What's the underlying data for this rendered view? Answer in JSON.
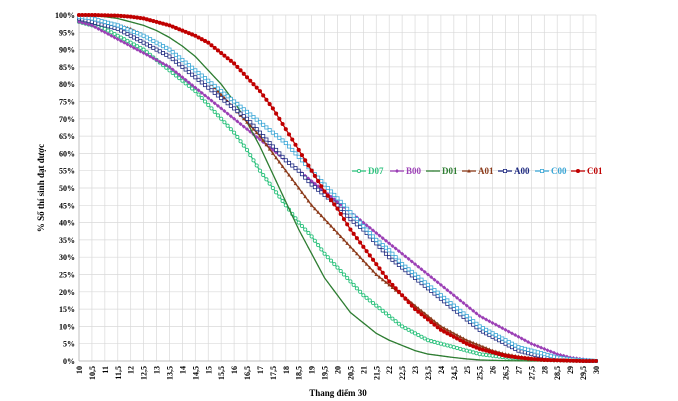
{
  "chart_data": {
    "type": "line",
    "title": "",
    "xlabel": "Thang điểm 30",
    "ylabel": "% Số thí sinh đạt được",
    "x_ticks": [
      "10",
      "10,5",
      "11",
      "11,5",
      "12",
      "12,5",
      "13",
      "13,5",
      "14",
      "14,5",
      "15",
      "15,5",
      "16",
      "16,5",
      "17",
      "17,5",
      "18",
      "18,5",
      "19",
      "19,5",
      "20",
      "20,5",
      "21",
      "21,5",
      "22",
      "22,5",
      "23",
      "23,5",
      "24",
      "24,5",
      "25",
      "25,5",
      "26",
      "26,5",
      "27",
      "27,5",
      "28",
      "28,5",
      "29",
      "29,5",
      "30"
    ],
    "y_ticks": [
      "0%",
      "5%",
      "10%",
      "15%",
      "20%",
      "25%",
      "30%",
      "35%",
      "40%",
      "45%",
      "50%",
      "55%",
      "60%",
      "65%",
      "70%",
      "75%",
      "80%",
      "85%",
      "90%",
      "95%",
      "100%"
    ],
    "xlim": [
      10,
      30
    ],
    "ylim": [
      0,
      100
    ],
    "grid": true,
    "legend_position": "right-center",
    "x": [
      10,
      10.5,
      11,
      11.5,
      12,
      12.5,
      13,
      13.5,
      14,
      14.5,
      15,
      15.5,
      16,
      16.5,
      17,
      17.5,
      18,
      18.5,
      19,
      19.5,
      20,
      20.5,
      21,
      21.5,
      22,
      22.5,
      23,
      23.5,
      24,
      24.5,
      25,
      25.5,
      26,
      26.5,
      27,
      27.5,
      28,
      28.5,
      29,
      29.5,
      30
    ],
    "series": [
      {
        "name": "D07",
        "color": "#2ec27e",
        "marker": "circle-open",
        "values": [
          98,
          97,
          96,
          94,
          92,
          90,
          87,
          84,
          81,
          78,
          74,
          70,
          66,
          61,
          55,
          50,
          45,
          40,
          36,
          31,
          27,
          23,
          19,
          16,
          13,
          10,
          8,
          6,
          5,
          4,
          3,
          2,
          1.5,
          1,
          0.7,
          0.5,
          0.3,
          0.2,
          0.1,
          0.05,
          0
        ]
      },
      {
        "name": "B00",
        "color": "#9b3fb5",
        "marker": "diamond",
        "values": [
          98,
          97,
          95,
          93,
          91,
          89,
          87,
          85,
          82,
          79,
          76,
          73,
          70,
          67,
          64,
          61,
          58,
          55,
          52,
          49,
          46,
          43,
          40,
          37,
          34,
          31,
          28,
          25,
          22,
          19,
          16,
          13,
          11,
          9,
          7,
          5,
          3.5,
          2,
          1,
          0.5,
          0
        ]
      },
      {
        "name": "D01",
        "color": "#2e7d32",
        "marker": "line",
        "values": [
          100,
          99.8,
          99.5,
          99,
          98,
          97,
          95.5,
          93.5,
          91,
          88,
          84,
          80,
          75,
          69,
          62,
          54,
          46,
          38,
          31,
          24,
          19,
          14,
          11,
          8,
          6,
          4.5,
          3,
          2,
          1.5,
          1,
          0.6,
          0.3,
          0.2,
          0.1,
          0.05,
          0,
          0,
          0,
          0,
          0,
          0
        ]
      },
      {
        "name": "A01",
        "color": "#8b3a1a",
        "marker": "triangle",
        "values": [
          99.5,
          99,
          98,
          97,
          96,
          94,
          92,
          90,
          87,
          84,
          81,
          77,
          73,
          69,
          65,
          60,
          55,
          50,
          45,
          41,
          37,
          33,
          29,
          25,
          22,
          19,
          16,
          13,
          10,
          8,
          6,
          4.5,
          3,
          2,
          1.3,
          0.8,
          0.5,
          0.3,
          0.2,
          0.1,
          0
        ]
      },
      {
        "name": "A00",
        "color": "#1e2a80",
        "marker": "square-open",
        "values": [
          99,
          98,
          97,
          96,
          94,
          92,
          90,
          88,
          85,
          82,
          79,
          76,
          73,
          70,
          66,
          62,
          58,
          55,
          51,
          48,
          45,
          41,
          38,
          34,
          30,
          27,
          24,
          21,
          18,
          15,
          12,
          9,
          7,
          5,
          3,
          2,
          1.2,
          0.7,
          0.3,
          0.1,
          0
        ]
      },
      {
        "name": "C00",
        "color": "#3aa6d6",
        "marker": "square-open",
        "values": [
          99.5,
          99,
          98,
          97,
          95.5,
          94,
          92,
          90,
          87,
          84,
          81,
          78,
          75,
          72,
          69,
          66,
          63,
          59,
          55,
          51,
          47,
          43,
          39,
          35,
          32,
          28,
          25,
          22,
          19,
          16,
          13,
          10,
          8,
          6,
          4,
          3,
          2,
          1,
          0.5,
          0.2,
          0
        ]
      },
      {
        "name": "C01",
        "color": "#c00000",
        "marker": "circle",
        "values": [
          100,
          100,
          99.9,
          99.8,
          99.5,
          99,
          98,
          97,
          95.5,
          94,
          92,
          89,
          86,
          82,
          78,
          73,
          67,
          61,
          55,
          49,
          44,
          38,
          33,
          28,
          23,
          19,
          15,
          12,
          9,
          7,
          5,
          3.5,
          2.5,
          1.5,
          1,
          0.6,
          0.3,
          0.2,
          0.1,
          0,
          0
        ]
      }
    ]
  }
}
